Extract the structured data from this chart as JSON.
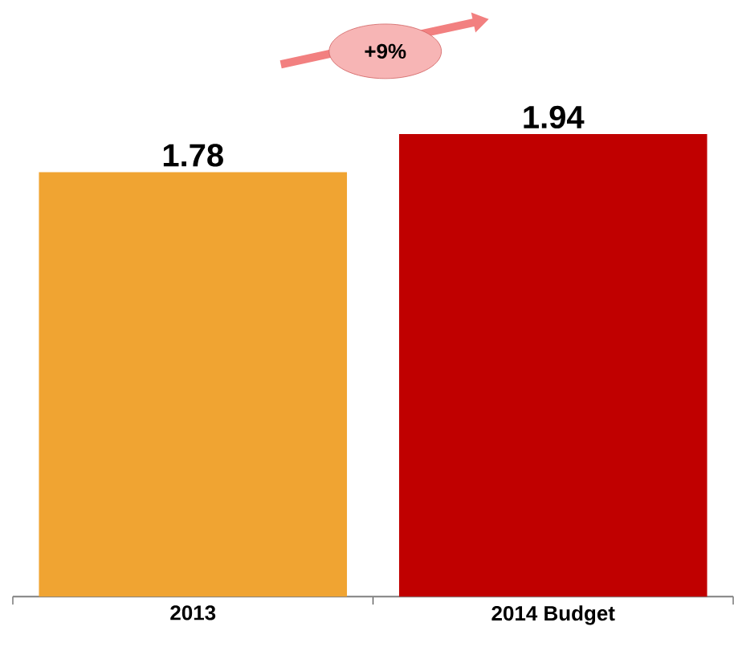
{
  "chart_data": {
    "type": "bar",
    "categories": [
      "2013",
      "2014 Budget"
    ],
    "values": [
      1.78,
      1.94
    ],
    "colors": [
      "#f0a432",
      "#c00000"
    ],
    "data_labels": true,
    "annotations": [
      "+9%"
    ]
  }
}
